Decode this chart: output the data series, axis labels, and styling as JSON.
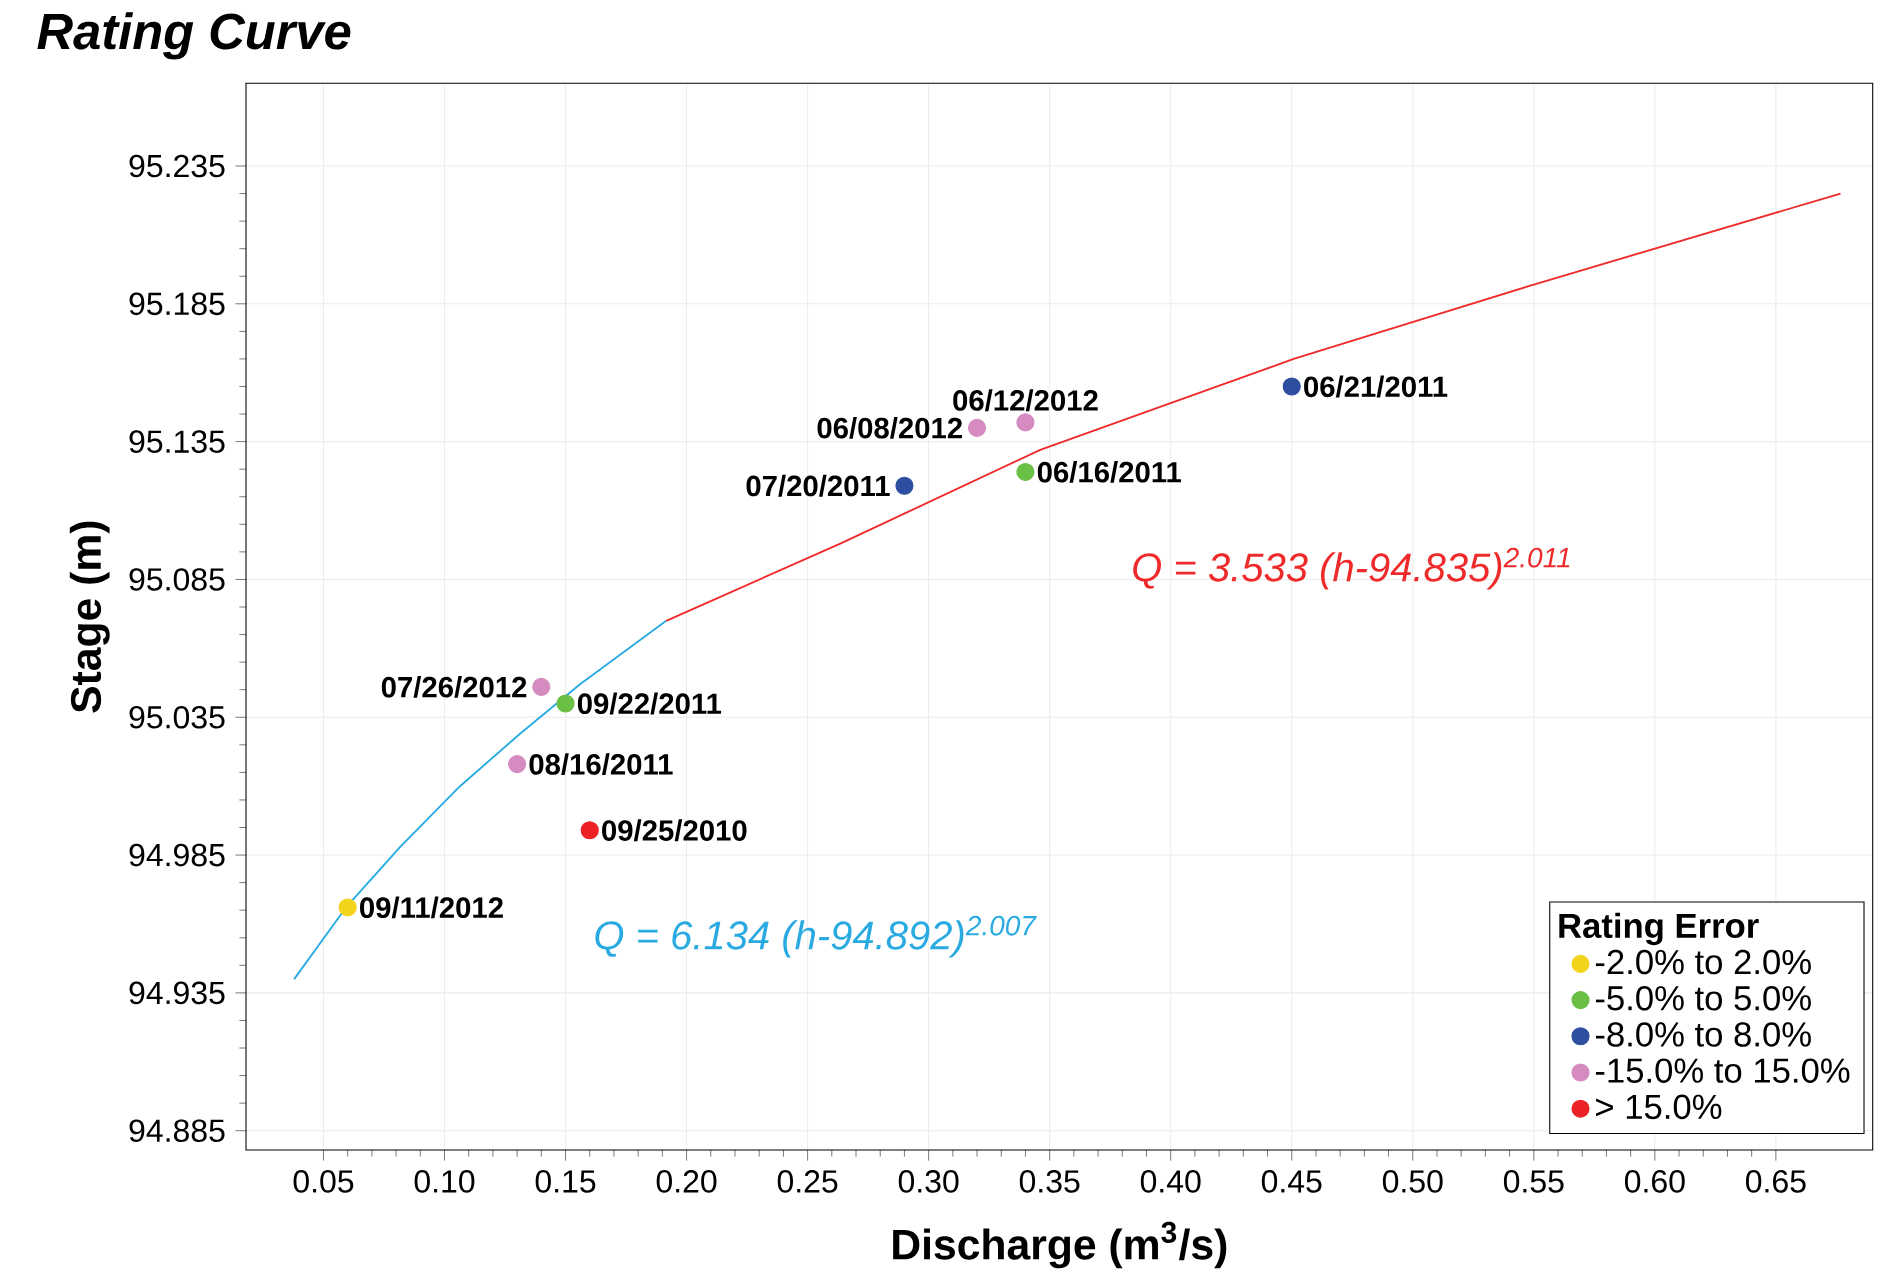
{
  "chart_data": {
    "type": "scatter",
    "title": "Rating Curve",
    "xlabel": "Discharge (m$^{3}$/s)",
    "ylabel": "Stage (m)",
    "legend_title": "Rating Error",
    "xlim": [
      0.018,
      0.69
    ],
    "ylim": [
      94.878,
      95.265
    ],
    "xticks": [
      0.05,
      {
        "value": 0.1,
        "label": "0.10"
      },
      0.15,
      {
        "value": 0.2,
        "label": "0.20"
      },
      0.25,
      {
        "value": 0.3,
        "label": "0.30"
      },
      0.35,
      {
        "value": 0.4,
        "label": "0.40"
      },
      0.45,
      {
        "value": 0.5,
        "label": "0.50"
      },
      0.55,
      {
        "value": 0.6,
        "label": "0.60"
      },
      0.65
    ],
    "yticks": [
      94.885,
      94.935,
      94.985,
      95.035,
      95.085,
      95.135,
      95.185,
      95.235
    ],
    "grid": true,
    "legend": "bottom right",
    "marker": "circle",
    "series": [
      {
        "type": "line",
        "marker": "none",
        "color": "#29abe2",
        "x": [
          0.0379,
          0.0593,
          0.0817,
          0.1064,
          0.1312,
          0.156,
          0.1916
        ],
        "values": [
          94.94,
          94.966,
          94.988,
          95.01,
          95.029,
          95.047,
          95.07
        ]
      },
      {
        "type": "line",
        "marker": "none",
        "color": "#ee2a2a",
        "x": [
          0.1916,
          0.2635,
          0.3461,
          0.4508,
          0.55,
          0.6767
        ],
        "values": [
          95.07,
          95.098,
          95.132,
          95.165,
          95.192,
          95.225
        ]
      },
      {
        "name": "-2.0% to 2.0%",
        "color": "#f2d41c",
        "x": [
          0.06
        ],
        "values": [
          94.966
        ]
      },
      {
        "name": "-5.0% to 5.0%",
        "color": "#6abf45",
        "x": [
          0.15,
          0.34
        ],
        "values": [
          95.04,
          95.124
        ]
      },
      {
        "name": "-8.0% to 8.0%",
        "color": "#2e4e9f",
        "x": [
          0.29,
          0.45
        ],
        "values": [
          95.119,
          95.155
        ]
      },
      {
        "name": "-15.0% to 15.0%",
        "color": "#d58bc0",
        "x": [
          0.14,
          0.13,
          0.32,
          0.34
        ],
        "values": [
          95.046,
          95.018,
          95.14,
          95.142
        ]
      },
      {
        "name": "> 15.0%",
        "color": "#ec2227",
        "x": [
          0.16
        ],
        "values": [
          94.994
        ]
      }
    ],
    "annotations": [
      {
        "text": "09/11/2012",
        "x": 0.06,
        "y": 94.966
      },
      {
        "text": "09/25/2010",
        "x": 0.16,
        "y": 94.994
      },
      {
        "text": "08/16/2011",
        "x": 0.13,
        "y": 95.018
      },
      {
        "text": "09/22/2011",
        "x": 0.15,
        "y": 95.04
      },
      {
        "text": "07/26/2012",
        "x": 0.14,
        "y": 95.046
      },
      {
        "text": "07/20/2011",
        "x": 0.29,
        "y": 95.119
      },
      {
        "text": "06/08/2012",
        "x": 0.32,
        "y": 95.14
      },
      {
        "text": "06/12/2012",
        "x": 0.34,
        "y": 95.142
      },
      {
        "text": "06/16/2011",
        "x": 0.34,
        "y": 95.124
      },
      {
        "text": "06/21/2011",
        "x": 0.45,
        "y": 95.155
      },
      "Q = 6.134 (h-94.892)$^{2.007}$",
      "Q = 3.533 (h-94.835)$^{2.011}$"
    ]
  }
}
